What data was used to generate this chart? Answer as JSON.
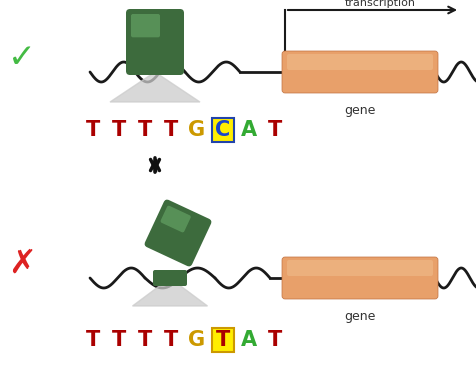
{
  "bg_color": "#ffffff",
  "dna_color": "#1a1a1a",
  "gene_color": "#e8a06a",
  "tf_color": "#3d6b3d",
  "tf_highlight": "#5a9a5a",
  "grey_triangle": "#cccccc",
  "checkmark_color": "#44bb44",
  "cross_color": "#dd2222",
  "gene_label": "gene",
  "transcription_label": "transcription",
  "seq_top_letters": [
    "T",
    "T",
    "T",
    "T",
    "G",
    "C",
    "A",
    "T"
  ],
  "seq_top_colors": [
    "#aa0000",
    "#aa0000",
    "#aa0000",
    "#aa0000",
    "#cc9900",
    "#1a44cc",
    "#33aa33",
    "#aa0000"
  ],
  "seq_top_highlight": [
    false,
    false,
    false,
    false,
    false,
    true,
    false,
    false
  ],
  "seq_top_highlight_bg": "#ffee00",
  "seq_top_highlight_border": "#2244aa",
  "seq_bot_letters": [
    "T",
    "T",
    "T",
    "T",
    "G",
    "T",
    "A",
    "T"
  ],
  "seq_bot_colors": [
    "#aa0000",
    "#aa0000",
    "#aa0000",
    "#aa0000",
    "#cc9900",
    "#aa0000",
    "#33aa33",
    "#aa0000"
  ],
  "seq_bot_highlight": [
    false,
    false,
    false,
    false,
    false,
    true,
    false,
    false
  ],
  "seq_bot_highlight_bg": "#ffee00",
  "seq_bot_highlight_border": "#cc9900",
  "arrow_color": "#111111"
}
